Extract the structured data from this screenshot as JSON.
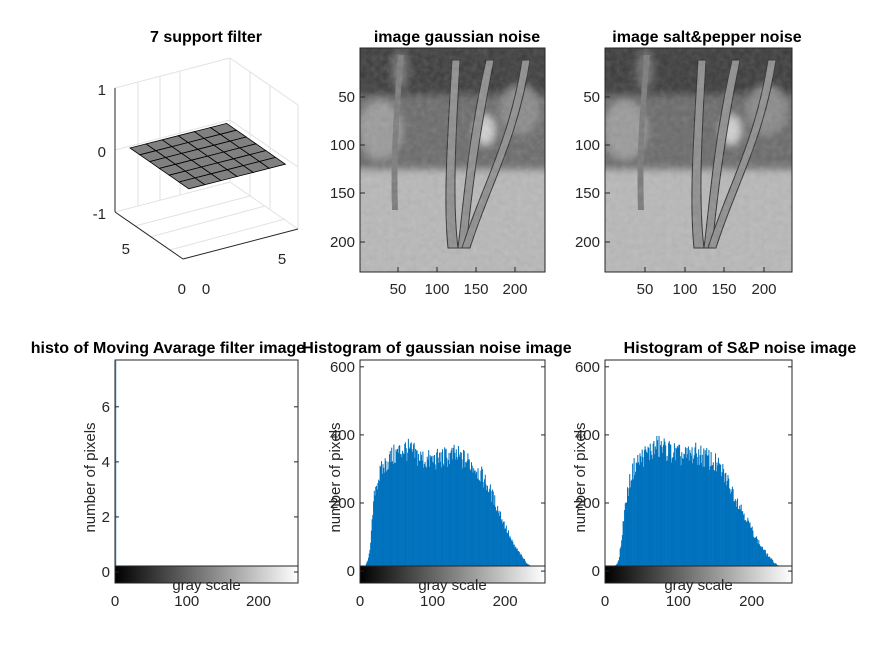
{
  "figure": {
    "subplot_titles": {
      "filter": "7 support filter",
      "gauss_image": "image  gaussian noise",
      "sp_image": "image  salt&pepper noise",
      "hist_ma": "histo of Moving Avarage filter image",
      "hist_gauss": "Histogram of gaussian noise image",
      "hist_sp": "Histogram of S&P noise image"
    }
  },
  "chart_data": [
    {
      "type": "surface",
      "title": "7 support filter",
      "x_ticks": [
        "0",
        "5"
      ],
      "y_ticks": [
        "0",
        "5"
      ],
      "z_ticks": [
        "-1",
        "0",
        "1"
      ],
      "zlim": [
        -1,
        1
      ],
      "grid_size": 7,
      "surface_value": 0.02,
      "surface_color": "#808080"
    },
    {
      "type": "heatmap",
      "title": "image  gaussian noise",
      "x_ticks": [
        "50",
        "100",
        "150",
        "200"
      ],
      "y_ticks": [
        "50",
        "100",
        "150",
        "200"
      ],
      "xlim": [
        0,
        237
      ],
      "ylim": [
        0,
        237
      ],
      "colormap": "gray"
    },
    {
      "type": "heatmap",
      "title": "image  salt&pepper noise",
      "x_ticks": [
        "50",
        "100",
        "150",
        "200"
      ],
      "y_ticks": [
        "50",
        "100",
        "150",
        "200"
      ],
      "xlim": [
        0,
        237
      ],
      "ylim": [
        0,
        237
      ],
      "colormap": "gray"
    },
    {
      "type": "bar",
      "title": "histo of Moving Avarage filter image",
      "xlabel": "gray scale",
      "ylabel": "number of pixels",
      "xlim": [
        0,
        255
      ],
      "ylim": [
        -0.4,
        7.7
      ],
      "x_ticks": [
        "0",
        "100",
        "200"
      ],
      "y_ticks": [
        "0",
        "2",
        "4",
        "6"
      ],
      "bars": [
        {
          "x": 0.5,
          "value": 7.7
        }
      ],
      "bar_color": "#0072BD"
    },
    {
      "type": "bar",
      "title": "Histogram of gaussian noise image",
      "xlabel": "gray scale",
      "ylabel": "number of pixels",
      "xlim": [
        0,
        255
      ],
      "ylim": [
        -35,
        620
      ],
      "x_ticks": [
        "0",
        "100",
        "200"
      ],
      "y_ticks": [
        "0",
        "200",
        "400",
        "600"
      ],
      "envelope": [
        [
          0,
          0
        ],
        [
          5,
          5
        ],
        [
          10,
          30
        ],
        [
          14,
          80
        ],
        [
          17,
          170
        ],
        [
          20,
          240
        ],
        [
          25,
          275
        ],
        [
          30,
          300
        ],
        [
          40,
          330
        ],
        [
          50,
          345
        ],
        [
          60,
          360
        ],
        [
          70,
          350
        ],
        [
          80,
          335
        ],
        [
          90,
          325
        ],
        [
          100,
          325
        ],
        [
          110,
          330
        ],
        [
          120,
          335
        ],
        [
          130,
          340
        ],
        [
          140,
          330
        ],
        [
          150,
          320
        ],
        [
          160,
          300
        ],
        [
          170,
          270
        ],
        [
          180,
          230
        ],
        [
          190,
          180
        ],
        [
          200,
          130
        ],
        [
          210,
          80
        ],
        [
          220,
          50
        ],
        [
          230,
          22
        ],
        [
          238,
          8
        ],
        [
          245,
          2
        ],
        [
          255,
          0
        ]
      ],
      "bar_color": "#0072BD"
    },
    {
      "type": "bar",
      "title": "Histogram of S&P noise image",
      "xlabel": "gray scale",
      "ylabel": "number of pixels",
      "xlim": [
        0,
        255
      ],
      "ylim": [
        -35,
        620
      ],
      "x_ticks": [
        "0",
        "100",
        "200"
      ],
      "y_ticks": [
        "0",
        "200",
        "400",
        "600"
      ],
      "envelope": [
        [
          0,
          0
        ],
        [
          10,
          5
        ],
        [
          18,
          30
        ],
        [
          22,
          90
        ],
        [
          25,
          160
        ],
        [
          30,
          230
        ],
        [
          35,
          280
        ],
        [
          40,
          310
        ],
        [
          50,
          335
        ],
        [
          60,
          350
        ],
        [
          70,
          365
        ],
        [
          80,
          360
        ],
        [
          90,
          350
        ],
        [
          100,
          340
        ],
        [
          110,
          335
        ],
        [
          120,
          345
        ],
        [
          130,
          340
        ],
        [
          140,
          330
        ],
        [
          150,
          315
        ],
        [
          160,
          290
        ],
        [
          170,
          250
        ],
        [
          180,
          205
        ],
        [
          190,
          165
        ],
        [
          200,
          120
        ],
        [
          210,
          80
        ],
        [
          220,
          50
        ],
        [
          230,
          25
        ],
        [
          240,
          10
        ],
        [
          250,
          2
        ],
        [
          255,
          0
        ]
      ],
      "bar_color": "#0072BD"
    }
  ]
}
